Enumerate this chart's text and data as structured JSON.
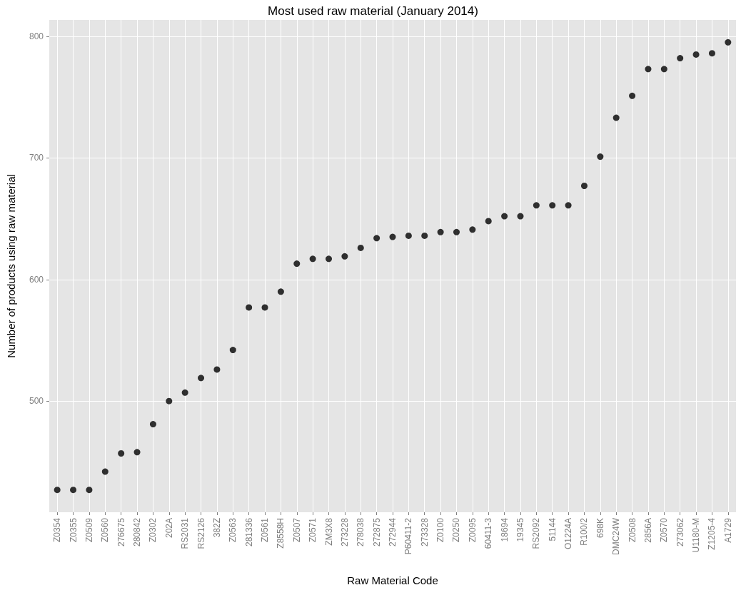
{
  "chart_data": {
    "type": "scatter",
    "title": "Most used raw material (January 2014)",
    "xlabel": "Raw Material Code",
    "ylabel": "Number of products using raw material",
    "categories": [
      "Z0354",
      "Z0355",
      "Z0509",
      "Z0560",
      "276675",
      "280842",
      "Z0302",
      "202A",
      "RS2031",
      "RS2126",
      "382Z",
      "Z0563",
      "281336",
      "Z0561",
      "Z8558H",
      "Z0507",
      "Z0571",
      "ZM3X8",
      "273228",
      "278038",
      "272875",
      "272944",
      "P60411-2",
      "273328",
      "Z0100",
      "Z0250",
      "Z0095",
      "60411-3",
      "18694",
      "19345",
      "RS2092",
      "51144",
      "O1224A",
      "R100/2",
      "698K",
      "DMC24W",
      "Z0508",
      "2856A",
      "Z0570",
      "273062",
      "U1180-M",
      "Z1205-4",
      "A1729"
    ],
    "values": [
      427,
      427,
      427,
      442,
      457,
      458,
      481,
      500,
      507,
      519,
      526,
      542,
      577,
      577,
      590,
      613,
      617,
      617,
      619,
      626,
      634,
      635,
      636,
      636,
      639,
      639,
      641,
      648,
      652,
      652,
      661,
      661,
      661,
      677,
      701,
      733,
      751,
      773,
      773,
      782,
      785,
      786,
      795
    ],
    "color": "#000000",
    "marker": "circle",
    "ylim": [
      408.6,
      813.4
    ],
    "yticks": [
      500,
      600,
      700,
      800
    ],
    "grid": true
  }
}
